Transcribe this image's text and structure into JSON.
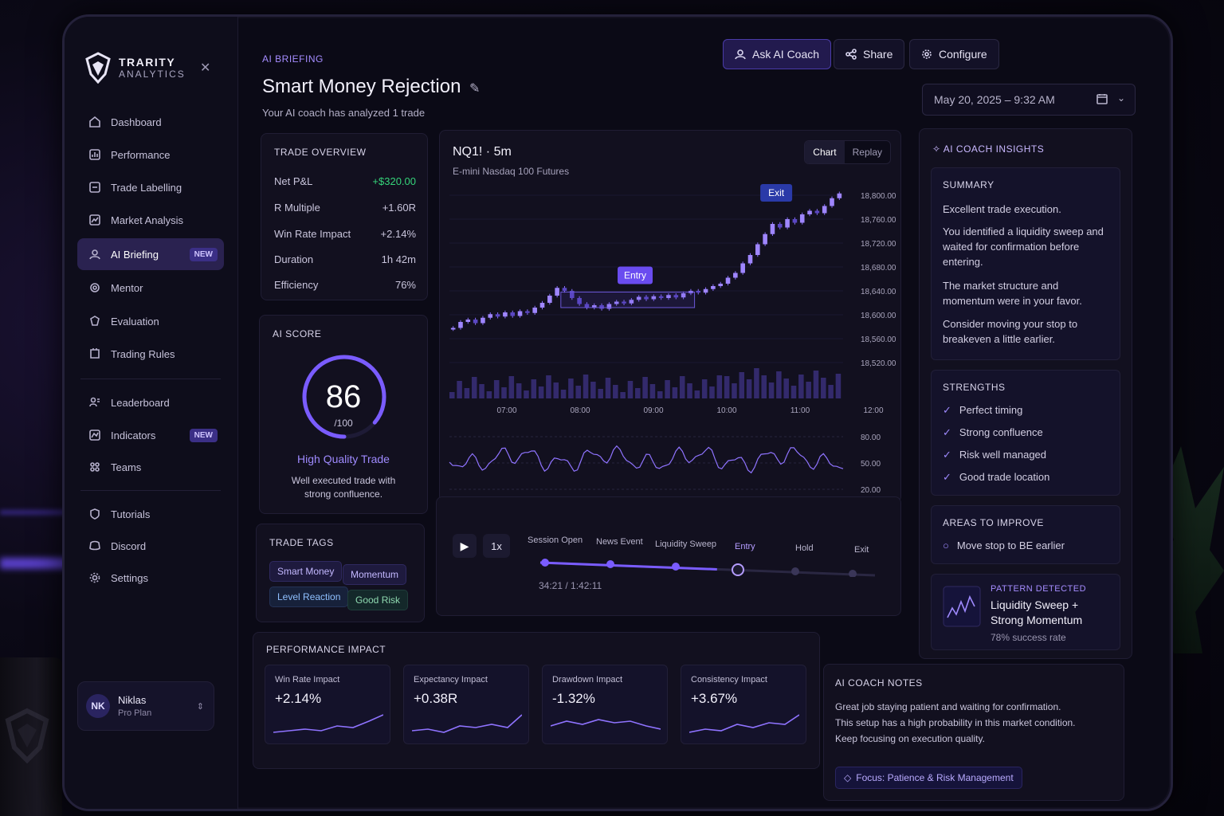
{
  "app": {
    "brand": "TRARITY",
    "brand_sub": "ANALYTICS"
  },
  "sidebar": {
    "items": [
      {
        "label": "Dashboard",
        "icon": "home-icon"
      },
      {
        "label": "Performance",
        "icon": "chart-icon"
      },
      {
        "label": "Trade Labelling",
        "icon": "tag-icon"
      },
      {
        "label": "Market Analysis",
        "icon": "analysis-icon"
      },
      {
        "label": "AI Briefing",
        "icon": "ai-icon",
        "badge": "NEW",
        "active": true
      },
      {
        "label": "Mentor",
        "icon": "mentor-icon"
      },
      {
        "label": "Evaluation",
        "icon": "evaluation-icon"
      },
      {
        "label": "Trading Rules",
        "icon": "rules-icon"
      },
      {
        "label": "Leaderboard",
        "icon": "leaderboard-icon"
      },
      {
        "label": "Indicators",
        "icon": "indicators-icon",
        "badge": "NEW"
      },
      {
        "label": "Teams",
        "icon": "teams-icon"
      },
      {
        "label": "Tutorials",
        "icon": "tutorials-icon"
      },
      {
        "label": "Discord",
        "icon": "discord-icon"
      },
      {
        "label": "Settings",
        "icon": "settings-icon"
      }
    ],
    "user": {
      "initials": "NK",
      "name": "Niklas",
      "plan": "Pro Plan"
    }
  },
  "header": {
    "breadcrumb": "AI BRIEFING",
    "title": "Smart Money Rejection",
    "subtitle": "Your AI coach has analyzed 1 trade",
    "ask_label": "Ask AI Coach",
    "share_label": "Share",
    "configure_label": "Configure",
    "date": "May 20, 2025 – 9:32 AM"
  },
  "overview": {
    "title": "TRADE OVERVIEW",
    "rows": [
      {
        "label": "Net P&L",
        "value": "+$320.00"
      },
      {
        "label": "R Multiple",
        "value": "+1.60R"
      },
      {
        "label": "Win Rate Impact",
        "value": "+2.14%"
      },
      {
        "label": "Duration",
        "value": "1h 42m"
      },
      {
        "label": "Efficiency",
        "value": "76%"
      }
    ]
  },
  "score": {
    "title": "AI SCORE",
    "value": "86",
    "max": "/100",
    "level": 0.86,
    "label": "High Quality Trade",
    "desc1": "Well executed trade with",
    "desc2": "strong confluence."
  },
  "tags": {
    "title": "TRADE TAGS",
    "items": [
      "Smart Money",
      "Momentum",
      "Level Reaction",
      "Good Risk"
    ]
  },
  "chart": {
    "symbol": "NQ1! · 5m",
    "name": "E-mini Nasdaq 100 Futures",
    "tab_chart": "Chart",
    "tab_replay": "Replay",
    "entry_label": "Entry",
    "exit_label": "Exit"
  },
  "chart_data": {
    "type": "line",
    "x_ticks": [
      "07:00",
      "08:00",
      "09:00",
      "10:00",
      "11:00",
      "12:00"
    ],
    "y_ticks": [
      "18,800.00",
      "18,760.00",
      "18,720.00",
      "18,680.00",
      "18,640.00",
      "18,600.00",
      "18,560.00",
      "18,520.00"
    ],
    "osc_ticks": [
      "80.00",
      "50.00",
      "20.00"
    ],
    "ylim": [
      18500,
      18820
    ],
    "price": [
      18578,
      18588,
      18592,
      18586,
      18595,
      18601,
      18597,
      18604,
      18598,
      18606,
      18603,
      18612,
      18620,
      18632,
      18645,
      18640,
      18628,
      18618,
      18612,
      18616,
      18610,
      18618,
      18622,
      18619,
      18625,
      18630,
      18626,
      18631,
      18628,
      18633,
      18629,
      18636,
      18640,
      18637,
      18643,
      18648,
      18652,
      18662,
      18670,
      18686,
      18700,
      18718,
      18735,
      18752,
      18746,
      18760,
      18754,
      18768,
      18774,
      18770,
      18782,
      18795,
      18803
    ]
  },
  "replay": {
    "speed": "1x",
    "time": "34:21 / 1:42:11",
    "events": [
      "Session Open",
      "News Event",
      "Liquidity Sweep",
      "Entry",
      "Hold",
      "Exit"
    ],
    "progress": 0.33
  },
  "insights": {
    "title": "AI COACH INSIGHTS",
    "summary_title": "SUMMARY",
    "summary": [
      "Excellent trade execution.",
      "You identified a liquidity sweep and waited for confirmation before entering.",
      "The market structure and momentum were in your favor.",
      "Consider moving your stop to breakeven a little earlier."
    ],
    "strengths_title": "STRENGTHS",
    "strengths": [
      "Perfect timing",
      "Strong confluence",
      "Risk well managed",
      "Good trade location"
    ],
    "improve_title": "AREAS TO IMPROVE",
    "improve": [
      "Move stop to BE earlier"
    ],
    "pattern_title": "PATTERN DETECTED",
    "pattern_name1": "Liquidity Sweep +",
    "pattern_name2": "Strong Momentum",
    "pattern_rate": "78% success rate"
  },
  "performance": {
    "title": "PERFORMANCE IMPACT",
    "items": [
      {
        "label": "Win Rate Impact",
        "value": "+2.14%"
      },
      {
        "label": "Expectancy Impact",
        "value": "+0.38R"
      },
      {
        "label": "Drawdown Impact",
        "value": "-1.32%"
      },
      {
        "label": "Consistency Impact",
        "value": "+3.67%"
      }
    ]
  },
  "notes": {
    "title": "AI COACH NOTES",
    "lines": [
      "Great job staying patient and waiting for confirmation.",
      "This setup has a high probability in this market condition.",
      "Keep focusing on execution quality."
    ],
    "focus": "Focus: Patience & Risk Management"
  },
  "colors": {
    "accent": "#7c5cff",
    "positive": "#35d47a",
    "panel": "#12101f"
  }
}
